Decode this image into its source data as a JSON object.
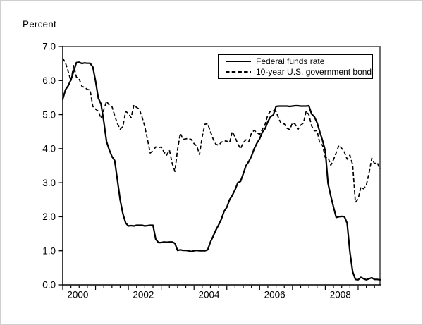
{
  "header": {
    "y_axis_unit_label": "Percent"
  },
  "legend": {
    "items": [
      {
        "label": "Federal funds rate",
        "style": "solid"
      },
      {
        "label": "10-year U.S. government bond",
        "style": "dashed"
      }
    ]
  },
  "axes": {
    "y_ticks": [
      "0.0",
      "1.0",
      "2.0",
      "3.0",
      "4.0",
      "5.0",
      "6.0",
      "7.0"
    ],
    "x_ticks": [
      "2000",
      "2002",
      "2004",
      "2006",
      "2008"
    ]
  },
  "colors": {
    "line": "#000000",
    "plot_border_gray": "#6e6e6e",
    "axis_black": "#000000"
  },
  "chart_data": {
    "type": "line",
    "title": "",
    "xlabel": "",
    "ylabel": "Percent",
    "ylim": [
      0,
      7
    ],
    "y_tick_step": 1.0,
    "grid": false,
    "legend_position": "top-right-inside",
    "x_range": {
      "start": "2000-01",
      "end": "2009-09",
      "freq": "monthly"
    },
    "x_year_labels": [
      "2000",
      "2002",
      "2004",
      "2006",
      "2008"
    ],
    "series": [
      {
        "name": "Federal funds rate",
        "line_style": "solid",
        "color": "#000000",
        "values": [
          5.45,
          5.73,
          5.85,
          6.02,
          6.27,
          6.53,
          6.54,
          6.5,
          6.52,
          6.51,
          6.51,
          6.4,
          5.98,
          5.49,
          5.31,
          4.8,
          4.21,
          3.97,
          3.77,
          3.65,
          3.07,
          2.49,
          2.09,
          1.82,
          1.73,
          1.74,
          1.73,
          1.75,
          1.75,
          1.75,
          1.73,
          1.74,
          1.75,
          1.75,
          1.34,
          1.24,
          1.24,
          1.26,
          1.25,
          1.26,
          1.26,
          1.22,
          1.01,
          1.03,
          1.01,
          1.01,
          1.0,
          0.98,
          1.0,
          1.01,
          1.0,
          1.0,
          1.0,
          1.03,
          1.26,
          1.43,
          1.61,
          1.76,
          1.93,
          2.16,
          2.28,
          2.5,
          2.63,
          2.79,
          3.0,
          3.04,
          3.26,
          3.5,
          3.62,
          3.78,
          4.0,
          4.16,
          4.29,
          4.49,
          4.59,
          4.79,
          4.94,
          4.99,
          5.24,
          5.25,
          5.25,
          5.25,
          5.25,
          5.24,
          5.25,
          5.26,
          5.26,
          5.25,
          5.25,
          5.25,
          5.26,
          5.02,
          4.94,
          4.76,
          4.49,
          4.24,
          3.94,
          2.98,
          2.61,
          2.28,
          1.98,
          2.0,
          2.01,
          2.0,
          1.81,
          0.97,
          0.39,
          0.16,
          0.15,
          0.22,
          0.18,
          0.15,
          0.18,
          0.21,
          0.16,
          0.16,
          0.15
        ]
      },
      {
        "name": "10-year U.S. government bond",
        "line_style": "dashed",
        "color": "#000000",
        "values": [
          6.66,
          6.52,
          6.26,
          5.99,
          6.44,
          6.1,
          6.05,
          5.83,
          5.8,
          5.74,
          5.72,
          5.24,
          5.16,
          5.1,
          4.89,
          5.14,
          5.39,
          5.28,
          5.24,
          4.97,
          4.73,
          4.57,
          4.65,
          5.09,
          5.04,
          4.91,
          5.28,
          5.21,
          5.16,
          4.93,
          4.65,
          4.26,
          3.87,
          3.94,
          4.05,
          4.03,
          4.05,
          3.9,
          3.81,
          3.96,
          3.57,
          3.33,
          3.98,
          4.45,
          4.27,
          4.29,
          4.3,
          4.27,
          4.15,
          4.08,
          3.83,
          4.35,
          4.72,
          4.73,
          4.5,
          4.28,
          4.13,
          4.1,
          4.19,
          4.23,
          4.22,
          4.17,
          4.5,
          4.34,
          4.14,
          4.0,
          4.18,
          4.26,
          4.2,
          4.46,
          4.54,
          4.47,
          4.42,
          4.57,
          4.72,
          4.99,
          5.11,
          5.11,
          5.09,
          4.88,
          4.72,
          4.73,
          4.6,
          4.56,
          4.76,
          4.72,
          4.56,
          4.69,
          4.75,
          5.1,
          5.0,
          4.67,
          4.52,
          4.53,
          4.15,
          4.1,
          3.74,
          3.74,
          3.51,
          3.68,
          3.88,
          4.1,
          4.01,
          3.89,
          3.69,
          3.81,
          3.53,
          2.42,
          2.52,
          2.87,
          2.82,
          2.93,
          3.29,
          3.72,
          3.56,
          3.59,
          3.4
        ]
      }
    ]
  }
}
